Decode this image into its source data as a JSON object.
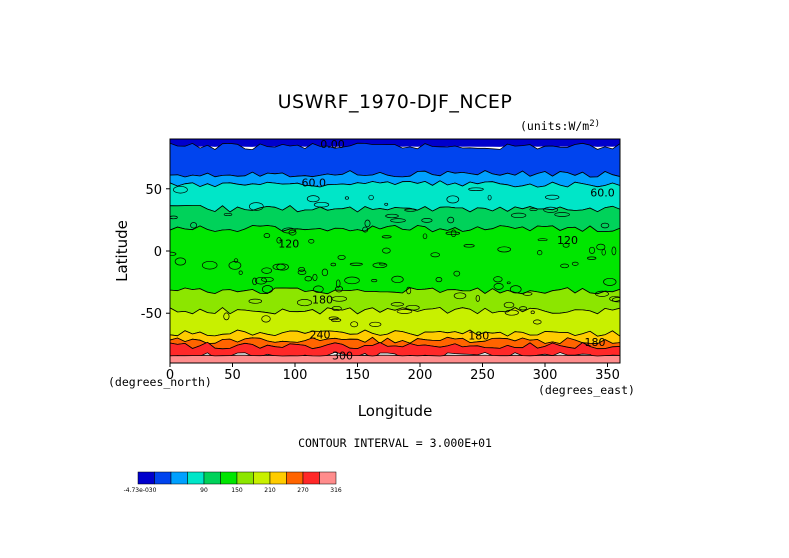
{
  "chart_data": {
    "type": "heatmap",
    "title": "USWRF_1970-DJF_NCEP",
    "units": "(units:W/m^2)",
    "units_text": "(units:W/m",
    "units_exp": "2)",
    "xlabel": "Longitude",
    "ylabel": "Latitude",
    "x_unit_label": "(degrees_north)",
    "x_unit_label_right": "(degrees_east)",
    "xlim": [
      0,
      360
    ],
    "ylim": [
      -90,
      90
    ],
    "xticks": [
      "0",
      "50",
      "100",
      "150",
      "200",
      "250",
      "300",
      "350"
    ],
    "yticks": [
      "50",
      "0",
      "-50"
    ],
    "ytick_values": [
      50,
      0,
      -50
    ],
    "xtick_values": [
      0,
      50,
      100,
      150,
      200,
      250,
      300,
      350
    ],
    "contour_interval_text": "CONTOUR INTERVAL = 3.000E+01",
    "contour_labels": [
      {
        "text": "0.00",
        "lon": 130,
        "lat": 86
      },
      {
        "text": "60.0",
        "lon": 115,
        "lat": 55
      },
      {
        "text": "60.0",
        "lon": 346,
        "lat": 47
      },
      {
        "text": "120",
        "lon": 95,
        "lat": 6
      },
      {
        "text": "120",
        "lon": 318,
        "lat": 9
      },
      {
        "text": "180",
        "lon": 122,
        "lat": -39
      },
      {
        "text": "240",
        "lon": 120,
        "lat": -67
      },
      {
        "text": "180",
        "lon": 247,
        "lat": -68
      },
      {
        "text": "180",
        "lon": 340,
        "lat": -73
      },
      {
        "text": "300",
        "lon": 138,
        "lat": -84
      }
    ],
    "lat_bands": [
      {
        "lat_top": 90,
        "lat_bottom": 84,
        "value": 0
      },
      {
        "lat_top": 84,
        "lat_bottom": 62,
        "value": 30
      },
      {
        "lat_top": 62,
        "lat_bottom": 54,
        "value": 60
      },
      {
        "lat_top": 54,
        "lat_bottom": 34,
        "value": 90
      },
      {
        "lat_top": 34,
        "lat_bottom": 18,
        "value": 120
      },
      {
        "lat_top": 18,
        "lat_bottom": -32,
        "value": 150
      },
      {
        "lat_top": -32,
        "lat_bottom": -48,
        "value": 180
      },
      {
        "lat_top": -48,
        "lat_bottom": -66,
        "value": 210
      },
      {
        "lat_top": -66,
        "lat_bottom": -72,
        "value": 240
      },
      {
        "lat_top": -72,
        "lat_bottom": -76,
        "value": 270
      },
      {
        "lat_top": -76,
        "lat_bottom": -84,
        "value": 300
      },
      {
        "lat_top": -84,
        "lat_bottom": -90,
        "value": 316
      }
    ],
    "colorbar": {
      "colors": [
        "#0000cc",
        "#0044ee",
        "#00a0ff",
        "#00e6c8",
        "#00d25a",
        "#00e600",
        "#8ce600",
        "#c8f000",
        "#ffcc00",
        "#ff6400",
        "#ff2828",
        "#ff8c8c"
      ],
      "labels": [
        "-4.73e-030",
        "90",
        "150",
        "210",
        "270",
        "316"
      ]
    }
  }
}
